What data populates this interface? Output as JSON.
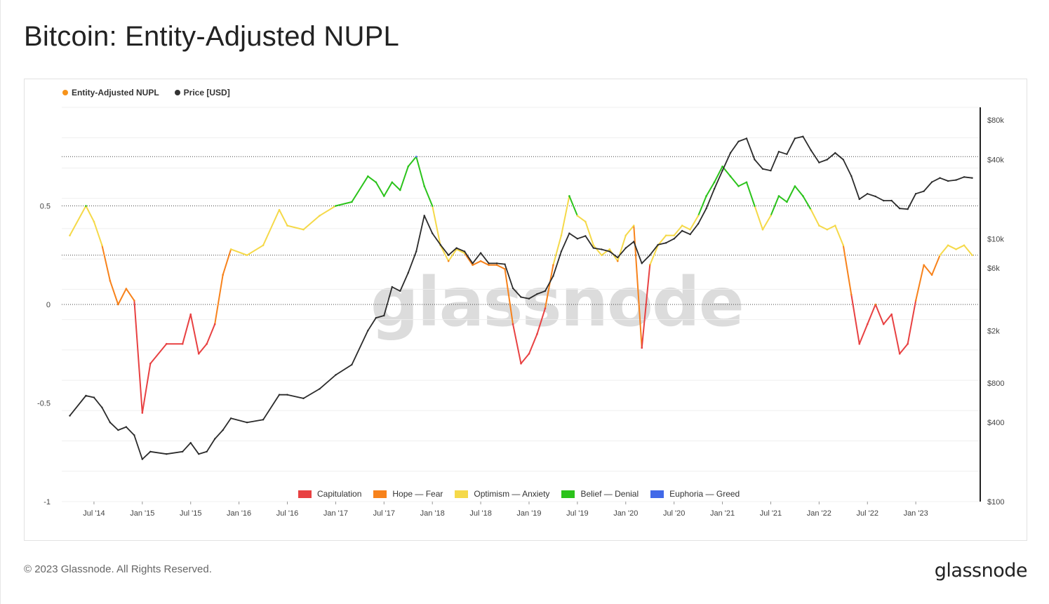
{
  "title": "Bitcoin: Entity-Adjusted NUPL",
  "footer": {
    "copyright": "© 2023 Glassnode. All Rights Reserved.",
    "logo": "glassnode"
  },
  "watermark": "glassnode",
  "legend_top": [
    {
      "label": "Entity-Adjusted NUPL",
      "color": "#f7931a"
    },
    {
      "label": "Price [USD]",
      "color": "#333333"
    }
  ],
  "legend_bottom": [
    {
      "label": "Capitulation",
      "color": "#e84142"
    },
    {
      "label": "Hope — Fear",
      "color": "#f7821b"
    },
    {
      "label": "Optimism — Anxiety",
      "color": "#f5d949"
    },
    {
      "label": "Belief — Denial",
      "color": "#2bc31b"
    },
    {
      "label": "Euphoria — Greed",
      "color": "#4169e8"
    }
  ],
  "chart_data": {
    "type": "line",
    "x_ticks": [
      "Jul '14",
      "Jan '15",
      "Jul '15",
      "Jan '16",
      "Jul '16",
      "Jan '17",
      "Jul '17",
      "Jan '18",
      "Jul '18",
      "Jan '19",
      "Jul '19",
      "Jan '20",
      "Jul '20",
      "Jan '21",
      "Jul '21",
      "Jan '22",
      "Jul '22",
      "Jan '23"
    ],
    "y_left_ticks": [
      "0.5",
      "0",
      "-0.5",
      "-1"
    ],
    "y_left_range": [
      -1,
      1
    ],
    "y_right_ticks": [
      "$80k",
      "$40k",
      "$10k",
      "$6k",
      "$2k",
      "$800",
      "$400",
      "$100"
    ],
    "y_right_scale": "log",
    "zones": [
      {
        "name": "Capitulation",
        "max": 0
      },
      {
        "name": "Hope — Fear",
        "min": 0,
        "max": 0.25
      },
      {
        "name": "Optimism — Anxiety",
        "min": 0.25,
        "max": 0.5
      },
      {
        "name": "Belief — Denial",
        "min": 0.5,
        "max": 0.75
      },
      {
        "name": "Euphoria — Greed",
        "min": 0.75
      }
    ],
    "series": [
      {
        "name": "Entity-Adjusted NUPL",
        "x": [
          "2014-04",
          "2014-06",
          "2014-07",
          "2014-08",
          "2014-09",
          "2014-10",
          "2014-11",
          "2014-12",
          "2015-01",
          "2015-02",
          "2015-04",
          "2015-06",
          "2015-07",
          "2015-08",
          "2015-09",
          "2015-10",
          "2015-11",
          "2015-12",
          "2016-02",
          "2016-04",
          "2016-06",
          "2016-07",
          "2016-09",
          "2016-11",
          "2017-01",
          "2017-03",
          "2017-05",
          "2017-06",
          "2017-07",
          "2017-08",
          "2017-09",
          "2017-10",
          "2017-11",
          "2017-12",
          "2018-01",
          "2018-02",
          "2018-03",
          "2018-04",
          "2018-05",
          "2018-06",
          "2018-07",
          "2018-08",
          "2018-09",
          "2018-10",
          "2018-11",
          "2018-12",
          "2019-01",
          "2019-02",
          "2019-03",
          "2019-04",
          "2019-05",
          "2019-06",
          "2019-07",
          "2019-08",
          "2019-09",
          "2019-10",
          "2019-11",
          "2019-12",
          "2020-01",
          "2020-02",
          "2020-03",
          "2020-04",
          "2020-05",
          "2020-06",
          "2020-07",
          "2020-08",
          "2020-09",
          "2020-10",
          "2020-11",
          "2020-12",
          "2021-01",
          "2021-02",
          "2021-03",
          "2021-04",
          "2021-05",
          "2021-06",
          "2021-07",
          "2021-08",
          "2021-09",
          "2021-10",
          "2021-11",
          "2021-12",
          "2022-01",
          "2022-02",
          "2022-03",
          "2022-04",
          "2022-05",
          "2022-06",
          "2022-07",
          "2022-08",
          "2022-09",
          "2022-10",
          "2022-11",
          "2022-12",
          "2023-01",
          "2023-02",
          "2023-03",
          "2023-04",
          "2023-05",
          "2023-06",
          "2023-07",
          "2023-08"
        ],
        "values": [
          0.35,
          0.5,
          0.42,
          0.3,
          0.12,
          0.0,
          0.08,
          0.02,
          -0.55,
          -0.3,
          -0.2,
          -0.2,
          -0.05,
          -0.25,
          -0.2,
          -0.1,
          0.15,
          0.28,
          0.25,
          0.3,
          0.48,
          0.4,
          0.38,
          0.45,
          0.5,
          0.52,
          0.65,
          0.62,
          0.55,
          0.62,
          0.58,
          0.7,
          0.75,
          0.6,
          0.5,
          0.3,
          0.22,
          0.28,
          0.26,
          0.2,
          0.22,
          0.2,
          0.2,
          0.18,
          -0.1,
          -0.3,
          -0.25,
          -0.15,
          -0.02,
          0.2,
          0.35,
          0.55,
          0.45,
          0.42,
          0.3,
          0.25,
          0.28,
          0.22,
          0.35,
          0.4,
          -0.22,
          0.2,
          0.3,
          0.35,
          0.35,
          0.4,
          0.38,
          0.45,
          0.55,
          0.62,
          0.7,
          0.65,
          0.6,
          0.62,
          0.5,
          0.38,
          0.45,
          0.55,
          0.52,
          0.6,
          0.55,
          0.48,
          0.4,
          0.38,
          0.4,
          0.3,
          0.05,
          -0.2,
          -0.1,
          0.0,
          -0.1,
          -0.05,
          -0.25,
          -0.2,
          0.02,
          0.2,
          0.15,
          0.25,
          0.3,
          0.28,
          0.3,
          0.25
        ]
      },
      {
        "name": "Price [USD]",
        "x": [
          "2014-04",
          "2014-06",
          "2014-07",
          "2014-08",
          "2014-09",
          "2014-10",
          "2014-11",
          "2014-12",
          "2015-01",
          "2015-02",
          "2015-04",
          "2015-06",
          "2015-07",
          "2015-08",
          "2015-09",
          "2015-10",
          "2015-11",
          "2015-12",
          "2016-02",
          "2016-04",
          "2016-06",
          "2016-07",
          "2016-09",
          "2016-11",
          "2017-01",
          "2017-03",
          "2017-05",
          "2017-06",
          "2017-07",
          "2017-08",
          "2017-09",
          "2017-10",
          "2017-11",
          "2017-12",
          "2018-01",
          "2018-02",
          "2018-03",
          "2018-04",
          "2018-05",
          "2018-06",
          "2018-07",
          "2018-08",
          "2018-09",
          "2018-10",
          "2018-11",
          "2018-12",
          "2019-01",
          "2019-02",
          "2019-03",
          "2019-04",
          "2019-05",
          "2019-06",
          "2019-07",
          "2019-08",
          "2019-09",
          "2019-10",
          "2019-11",
          "2019-12",
          "2020-01",
          "2020-02",
          "2020-03",
          "2020-04",
          "2020-05",
          "2020-06",
          "2020-07",
          "2020-08",
          "2020-09",
          "2020-10",
          "2020-11",
          "2020-12",
          "2021-01",
          "2021-02",
          "2021-03",
          "2021-04",
          "2021-05",
          "2021-06",
          "2021-07",
          "2021-08",
          "2021-09",
          "2021-10",
          "2021-11",
          "2021-12",
          "2022-01",
          "2022-02",
          "2022-03",
          "2022-04",
          "2022-05",
          "2022-06",
          "2022-07",
          "2022-08",
          "2022-09",
          "2022-10",
          "2022-11",
          "2022-12",
          "2023-01",
          "2023-02",
          "2023-03",
          "2023-04",
          "2023-05",
          "2023-06",
          "2023-07",
          "2023-08"
        ],
        "values": [
          450,
          640,
          620,
          520,
          400,
          350,
          370,
          320,
          210,
          240,
          230,
          240,
          280,
          230,
          240,
          300,
          350,
          430,
          400,
          420,
          650,
          650,
          610,
          720,
          920,
          1100,
          2000,
          2500,
          2600,
          4300,
          4000,
          5500,
          8000,
          15000,
          11000,
          9000,
          7500,
          8500,
          8000,
          6500,
          7800,
          6500,
          6500,
          6400,
          4200,
          3600,
          3500,
          3800,
          4000,
          5200,
          8000,
          11000,
          10000,
          10500,
          8500,
          8300,
          8000,
          7200,
          8500,
          9500,
          6500,
          7500,
          9000,
          9300,
          10000,
          11500,
          10800,
          13000,
          17000,
          24000,
          33000,
          45000,
          55000,
          58000,
          40000,
          34000,
          33000,
          46000,
          44000,
          58000,
          60000,
          47000,
          38000,
          40000,
          45000,
          40000,
          30000,
          20000,
          22000,
          21000,
          19500,
          19500,
          17000,
          16800,
          22000,
          23000,
          27000,
          29000,
          27500,
          28000,
          29500,
          29000
        ]
      }
    ]
  }
}
